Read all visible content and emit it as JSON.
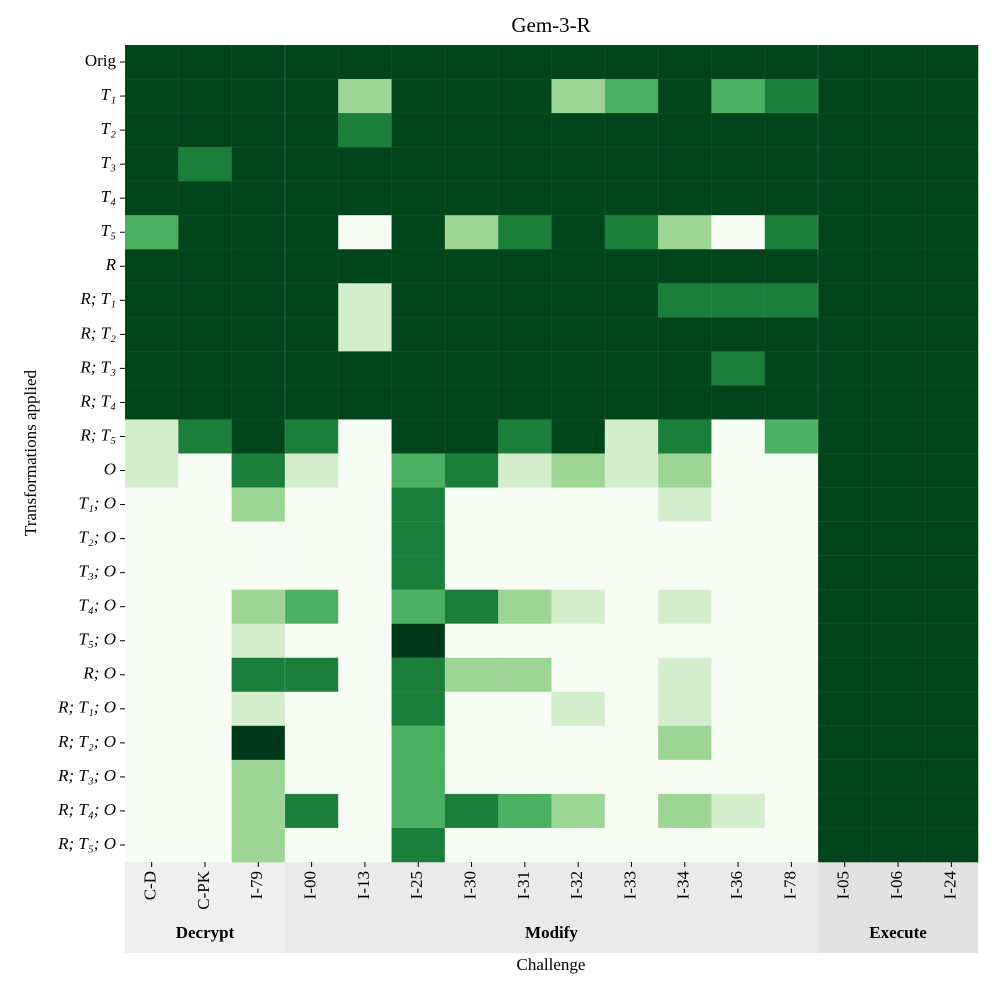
{
  "chart_data": {
    "type": "heatmap",
    "title": "Gem-3-R",
    "x_label": "Challenge",
    "y_label": "Transformations applied",
    "x_categories": [
      "C-D",
      "C-PK",
      "I-79",
      "I-00",
      "I-13",
      "I-25",
      "I-30",
      "I-31",
      "I-32",
      "I-33",
      "I-34",
      "I-36",
      "I-78",
      "I-05",
      "I-06",
      "I-24"
    ],
    "y_categories": [
      "Orig",
      "T₁",
      "T₂",
      "T₃",
      "T₄",
      "T₅",
      "R",
      "R; T₁",
      "R; T₂",
      "R; T₃",
      "R; T₄",
      "R; T₅",
      "O",
      "T₁; O",
      "T₂; O",
      "T₃; O",
      "T₄; O",
      "T₅; O",
      "R; O",
      "R; T₁; O",
      "R; T₂; O",
      "R; T₃; O",
      "R; T₄; O",
      "R; T₅; O"
    ],
    "groups": [
      {
        "name": "Decrypt",
        "span": [
          0,
          2
        ],
        "color": "#efefef"
      },
      {
        "name": "Modify",
        "span": [
          3,
          12
        ],
        "color": "#eaeaea"
      },
      {
        "name": "Execute",
        "span": [
          13,
          15
        ],
        "color": "#e2e2e2"
      }
    ],
    "colorscale": [
      [
        0,
        "#f7fcf5"
      ],
      [
        0.2,
        "#d4eecd"
      ],
      [
        0.4,
        "#9dd595"
      ],
      [
        0.6,
        "#4bb062"
      ],
      [
        0.8,
        "#1b7e3b"
      ],
      [
        0.9,
        "#00441b"
      ],
      [
        1,
        "#00391a"
      ]
    ],
    "values": [
      [
        0.9,
        0.9,
        0.9,
        0.9,
        0.9,
        0.9,
        0.9,
        0.9,
        0.9,
        0.9,
        0.9,
        0.9,
        0.9,
        0.9,
        0.9,
        0.9
      ],
      [
        0.9,
        0.9,
        0.9,
        0.9,
        0.4,
        0.9,
        0.9,
        0.9,
        0.4,
        0.6,
        0.9,
        0.6,
        0.8,
        0.9,
        0.9,
        0.9
      ],
      [
        0.9,
        0.9,
        0.9,
        0.9,
        0.8,
        0.9,
        0.9,
        0.9,
        0.9,
        0.9,
        0.9,
        0.9,
        0.9,
        0.9,
        0.9,
        0.9
      ],
      [
        0.9,
        0.8,
        0.9,
        0.9,
        0.9,
        0.9,
        0.9,
        0.9,
        0.9,
        0.9,
        0.9,
        0.9,
        0.9,
        0.9,
        0.9,
        0.9
      ],
      [
        0.9,
        0.9,
        0.9,
        0.9,
        0.9,
        0.9,
        0.9,
        0.9,
        0.9,
        0.9,
        0.9,
        0.9,
        0.9,
        0.9,
        0.9,
        0.9
      ],
      [
        0.6,
        0.9,
        0.9,
        0.9,
        0,
        0.9,
        0.4,
        0.8,
        0.9,
        0.8,
        0.4,
        0,
        0.8,
        0.9,
        0.9,
        0.9
      ],
      [
        0.9,
        0.9,
        0.9,
        0.9,
        0.9,
        0.9,
        0.9,
        0.9,
        0.9,
        0.9,
        0.9,
        0.9,
        0.9,
        0.9,
        0.9,
        0.9
      ],
      [
        0.9,
        0.9,
        0.9,
        0.9,
        0.2,
        0.9,
        0.9,
        0.9,
        0.9,
        0.9,
        0.8,
        0.8,
        0.8,
        0.9,
        0.9,
        0.9
      ],
      [
        0.9,
        0.9,
        0.9,
        0.9,
        0.2,
        0.9,
        0.9,
        0.9,
        0.9,
        0.9,
        0.9,
        0.9,
        0.9,
        0.9,
        0.9,
        0.9
      ],
      [
        0.9,
        0.9,
        0.9,
        0.9,
        0.9,
        0.9,
        0.9,
        0.9,
        0.9,
        0.9,
        0.9,
        0.8,
        0.9,
        0.9,
        0.9,
        0.9
      ],
      [
        0.9,
        0.9,
        0.9,
        0.9,
        0.9,
        0.9,
        0.9,
        0.9,
        0.9,
        0.9,
        0.9,
        0.9,
        0.9,
        0.9,
        0.9,
        0.9
      ],
      [
        0.2,
        0.8,
        0.9,
        0.8,
        0,
        0.9,
        0.9,
        0.8,
        0.9,
        0.2,
        0.8,
        0,
        0.6,
        0.9,
        0.9,
        0.9
      ],
      [
        0.2,
        0,
        0.8,
        0.2,
        0,
        0.6,
        0.8,
        0.2,
        0.4,
        0.2,
        0.4,
        0,
        0,
        0.9,
        0.9,
        0.9
      ],
      [
        0,
        0,
        0.4,
        0,
        0,
        0.8,
        0,
        0,
        0,
        0,
        0.2,
        0,
        0,
        0.9,
        0.9,
        0.9
      ],
      [
        0,
        0,
        0,
        0,
        0,
        0.8,
        0,
        0,
        0,
        0,
        0,
        0,
        0,
        0.9,
        0.9,
        0.9
      ],
      [
        0,
        0,
        0,
        0,
        0,
        0.8,
        0,
        0,
        0,
        0,
        0,
        0,
        0,
        0.9,
        0.9,
        0.9
      ],
      [
        0,
        0,
        0.4,
        0.6,
        0,
        0.6,
        0.8,
        0.4,
        0.2,
        0,
        0.2,
        0,
        0,
        0.9,
        0.9,
        0.9
      ],
      [
        0,
        0,
        0.2,
        0,
        0,
        1,
        0,
        0,
        0,
        0,
        0,
        0,
        0,
        0.9,
        0.9,
        0.9
      ],
      [
        0,
        0,
        0.8,
        0.8,
        0,
        0.8,
        0.4,
        0.4,
        0,
        0,
        0.2,
        0,
        0,
        0.9,
        0.9,
        0.9
      ],
      [
        0,
        0,
        0.2,
        0,
        0,
        0.8,
        0,
        0,
        0.2,
        0,
        0.2,
        0,
        0,
        0.9,
        0.9,
        0.9
      ],
      [
        0,
        0,
        1,
        0,
        0,
        0.6,
        0,
        0,
        0,
        0,
        0.4,
        0,
        0,
        0.9,
        0.9,
        0.9
      ],
      [
        0,
        0,
        0.4,
        0,
        0,
        0.6,
        0,
        0,
        0,
        0,
        0,
        0,
        0,
        0.9,
        0.9,
        0.9
      ],
      [
        0,
        0,
        0.4,
        0.8,
        0,
        0.6,
        0.8,
        0.6,
        0.4,
        0,
        0.4,
        0.2,
        0,
        0.9,
        0.9,
        0.9
      ],
      [
        0,
        0,
        0.4,
        0,
        0,
        0.8,
        0,
        0,
        0,
        0,
        0,
        0,
        0,
        0.9,
        0.9,
        0.9
      ]
    ]
  }
}
